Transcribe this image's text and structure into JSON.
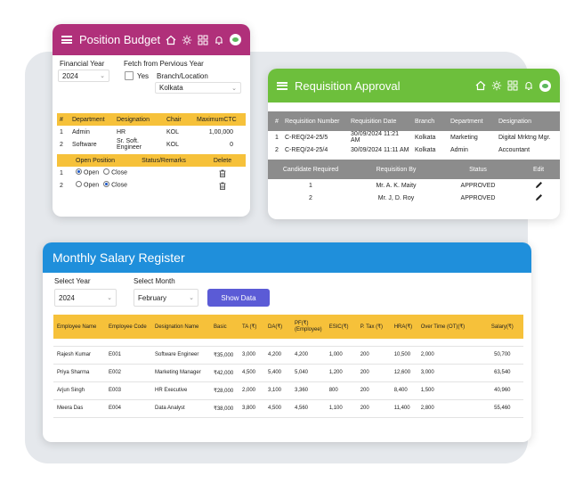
{
  "position_budget": {
    "title": "Position Budget",
    "financial_year_label": "Financial Year",
    "financial_year_value": "2024",
    "fetch_label": "Fetch from Pervious Year",
    "yes_label": "Yes",
    "branch_label": "Branch/Location",
    "branch_value": "Kolkata",
    "columns": [
      "#",
      "Department",
      "Designation",
      "Chair",
      "MaximumCTC"
    ],
    "rows": [
      [
        "1",
        "Admin",
        "HR",
        "KOL",
        "1,00,000"
      ],
      [
        "2",
        "Software",
        "Sr. Soft. Engineer",
        "KOL",
        "0"
      ]
    ],
    "open_columns": [
      "Open Position",
      "Status/Remarks",
      "Delete"
    ],
    "open_rows": [
      {
        "num": "1",
        "open": "Open",
        "close": "Close",
        "selected": "open"
      },
      {
        "num": "2",
        "open": "Open",
        "close": "Close",
        "selected": "close"
      }
    ]
  },
  "requisition": {
    "title": "Requisition Approval",
    "columns": [
      "#",
      "Requisition Number",
      "Requisition Date",
      "Branch",
      "Department",
      "Designation"
    ],
    "rows": [
      [
        "1",
        "C-REQ/24-25/5",
        "30/09/2024 11:21 AM",
        "Kolkata",
        "Marketing",
        "Digital Mrktng Mgr."
      ],
      [
        "2",
        "C-REQ/24-25/4",
        "30/09/2024 11:11 AM",
        "Kolkata",
        "Admin",
        "Accountant"
      ]
    ],
    "candidate_columns": [
      "Candidate Required",
      "Requisition By",
      "Status",
      "Edit"
    ],
    "candidate_rows": [
      [
        "1",
        "Mr. A. K. Maity",
        "APPROVED"
      ],
      [
        "2",
        "Mr. J, D. Roy",
        "APPROVED"
      ]
    ]
  },
  "salary": {
    "title": "Monthly Salary Register",
    "year_label": "Select Year",
    "year_value": "2024",
    "month_label": "Select Month",
    "month_value": "February",
    "show_button": "Show Data",
    "columns": [
      "Employee Name",
      "Employee Code",
      "Designation Name",
      "Basic",
      "TA (₹)",
      "DA(₹)",
      "PF(₹)\n(Employee)",
      "ESIC(₹)",
      "P. Tax (₹)",
      "HRA(₹)",
      "Over Time (OT)(₹)",
      "Salary(₹)"
    ],
    "rows": [
      [
        "Rajesh Kumar",
        "E001",
        "Software Engineer",
        "₹35,000",
        "3,000",
        "4,200",
        "4,200",
        "1,000",
        "200",
        "10,500",
        "2,000",
        "50,700"
      ],
      [
        "Priya Sharma",
        "E002",
        "Marketing Manager",
        "₹42,000",
        "4,500",
        "5,400",
        "5,040",
        "1,200",
        "200",
        "12,600",
        "3,000",
        "63,540"
      ],
      [
        "Arjun Singh",
        "E003",
        "HR Executive",
        "₹28,000",
        "2,000",
        "3,100",
        "3,360",
        "800",
        "200",
        "8,400",
        "1,500",
        "40,960"
      ],
      [
        "Meera Das",
        "E004",
        "Data Analyst",
        "₹38,000",
        "3,800",
        "4,500",
        "4,560",
        "1,100",
        "200",
        "11,400",
        "2,800",
        "55,460"
      ]
    ]
  },
  "colors": {
    "position_budget_header": "#b0307a",
    "requisition_header": "#6dbf3c",
    "salary_header": "#1f8fdb",
    "table_header": "#f6c13a",
    "show_button": "#5b5bd6"
  }
}
